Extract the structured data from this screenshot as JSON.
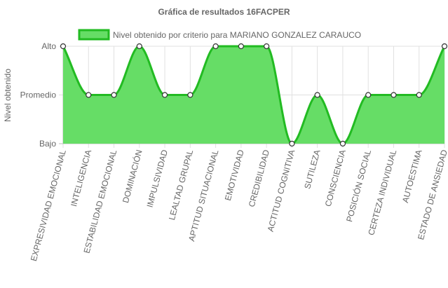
{
  "chart_data": {
    "type": "area",
    "title": "Gráfica de resultados 16FACPER",
    "ylabel": "Nivel obtenido",
    "xlabel": "",
    "y_levels": [
      "Bajo",
      "Promedio",
      "Alto"
    ],
    "ylim": [
      0,
      2
    ],
    "legend_position": "top",
    "grid": true,
    "categories": [
      "EXPRESIVIDAD EMOCIONAL",
      "INTELIGENCIA",
      "ESTABILIDAD EMOCIONAL",
      "DOMINACIÓN",
      "IMPULSIVIDAD",
      "LEALTAD GRUPAL",
      "APTITUD SITUACIONAL",
      "EMOTIVIDAD",
      "CREDIBILIDAD",
      "ACTITUD COGNITIVA",
      "SUTILEZA",
      "CONSCIENCIA",
      "POSICIÓN SOCIAL",
      "CERTEZA INDIVIDUAL",
      "AUTOESTIMA",
      "ESTADO DE ANSIEDAD"
    ],
    "series": [
      {
        "name": "Nivel obtenido por criterio para MARIANO GONZALEZ CARAUCO",
        "values": [
          2,
          1,
          1,
          2,
          1,
          1,
          2,
          2,
          2,
          0,
          1,
          0,
          1,
          1,
          1,
          2
        ]
      }
    ],
    "colors": {
      "fill": "#66dd66",
      "line": "#22bb22",
      "grid": "#e0e0e0",
      "point_fill": "#ffffff",
      "text": "#666666"
    }
  }
}
